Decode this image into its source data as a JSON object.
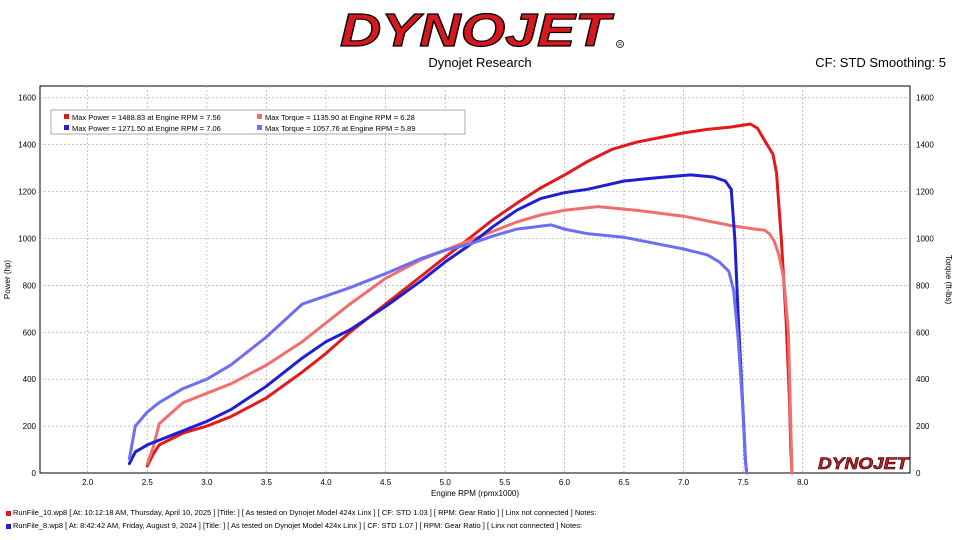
{
  "header": {
    "logo_text": "DYNOJET",
    "subtitle": "Dynojet Research",
    "cf_smoothing": "CF: STD Smoothing: 5",
    "watermark": "DYNOJET"
  },
  "legend": [
    {
      "text": "Max Power = 1488.83 at Engine RPM = 7.56",
      "color": "#e31a1c"
    },
    {
      "text": "Max Torque = 1135.90 at Engine RPM = 6.28",
      "color": "#ef6e6e"
    },
    {
      "text": "Max Power = 1271.50 at Engine RPM = 7.06",
      "color": "#1f1fd1"
    },
    {
      "text": "Max Torque = 1057.76 at Engine RPM = 5.89",
      "color": "#6e6ef0"
    }
  ],
  "footer": [
    {
      "text": "RunFile_10.wp8 [ At: 10:12:18 AM, Thursday, April 10, 2025 ] [Title: ]  [ As tested on Dynojet Model 424x Linx ] [ CF: STD 1.03 ] [ RPM: Gear Ratio ] [ Linx not connected ] Notes:",
      "color": "#e31a1c"
    },
    {
      "text": "RunFile_8.wp8 [ At: 8:42:42 AM, Friday, August 9, 2024 ] [Title: ]  [ As tested on Dynojet Model 424x Linx ] [ CF: STD 1.07 ] [ RPM: Gear Ratio ] [ Linx not connected ] Notes:",
      "color": "#1f1fd1"
    }
  ],
  "chart_data": {
    "type": "line",
    "xlabel": "Engine RPM (rpmx1000)",
    "ylabel": "Power (hp)",
    "y2label": "Torque (ft-lbs)",
    "xlim": [
      1.6,
      8.9
    ],
    "ylim": [
      0,
      1650
    ],
    "xticks": [
      "2.0",
      "2.5",
      "3.0",
      "3.5",
      "4.0",
      "4.5",
      "5.0",
      "5.5",
      "6.0",
      "6.5",
      "7.0",
      "7.5",
      "8.0"
    ],
    "yticks": [
      "0",
      "200",
      "400",
      "600",
      "800",
      "1000",
      "1200",
      "1400",
      "1600"
    ],
    "grid": true,
    "legend_position": "top-left",
    "series": [
      {
        "color": "#e31a1c",
        "x": [
          2.5,
          2.55,
          2.6,
          2.8,
          3.0,
          3.2,
          3.5,
          3.8,
          4.0,
          4.2,
          4.5,
          4.8,
          5.0,
          5.2,
          5.4,
          5.6,
          5.8,
          6.0,
          6.2,
          6.4,
          6.6,
          6.8,
          7.0,
          7.2,
          7.4,
          7.56,
          7.62,
          7.7,
          7.75,
          7.78,
          7.82,
          7.86,
          7.89,
          7.9,
          7.91
        ],
        "y": [
          30,
          80,
          120,
          170,
          200,
          240,
          320,
          430,
          510,
          600,
          720,
          840,
          920,
          1000,
          1080,
          1150,
          1215,
          1270,
          1330,
          1380,
          1410,
          1430,
          1450,
          1465,
          1475,
          1488,
          1470,
          1400,
          1360,
          1280,
          1000,
          650,
          300,
          100,
          0
        ]
      },
      {
        "color": "#ef6e6e",
        "x": [
          2.5,
          2.55,
          2.6,
          2.8,
          3.0,
          3.2,
          3.5,
          3.8,
          4.0,
          4.2,
          4.5,
          4.8,
          5.0,
          5.2,
          5.4,
          5.6,
          5.8,
          6.0,
          6.28,
          6.6,
          7.0,
          7.2,
          7.4,
          7.6,
          7.68,
          7.72,
          7.76,
          7.8,
          7.84,
          7.88,
          7.9,
          7.91
        ],
        "y": [
          40,
          110,
          210,
          300,
          340,
          380,
          460,
          560,
          640,
          720,
          830,
          910,
          950,
          990,
          1030,
          1070,
          1100,
          1120,
          1136,
          1120,
          1095,
          1075,
          1055,
          1040,
          1035,
          1020,
          990,
          930,
          830,
          600,
          200,
          0
        ]
      },
      {
        "color": "#1f1fd1",
        "x": [
          2.35,
          2.4,
          2.5,
          2.6,
          2.8,
          3.0,
          3.2,
          3.5,
          3.8,
          4.0,
          4.2,
          4.5,
          4.8,
          5.0,
          5.2,
          5.4,
          5.6,
          5.8,
          6.0,
          6.2,
          6.5,
          6.8,
          7.06,
          7.25,
          7.35,
          7.4,
          7.43,
          7.46,
          7.5,
          7.52,
          7.53
        ],
        "y": [
          40,
          90,
          120,
          140,
          180,
          220,
          270,
          370,
          490,
          560,
          610,
          710,
          820,
          900,
          970,
          1050,
          1120,
          1170,
          1195,
          1210,
          1245,
          1260,
          1271,
          1262,
          1245,
          1210,
          1000,
          650,
          250,
          50,
          0
        ]
      },
      {
        "color": "#6e6ef0",
        "x": [
          2.35,
          2.4,
          2.5,
          2.6,
          2.8,
          3.0,
          3.2,
          3.5,
          3.8,
          4.0,
          4.2,
          4.5,
          4.8,
          5.0,
          5.2,
          5.4,
          5.6,
          5.89,
          6.0,
          6.2,
          6.5,
          6.8,
          7.0,
          7.2,
          7.3,
          7.38,
          7.42,
          7.46,
          7.5,
          7.52,
          7.53
        ],
        "y": [
          60,
          200,
          260,
          300,
          360,
          400,
          460,
          580,
          720,
          755,
          790,
          850,
          915,
          950,
          975,
          1010,
          1040,
          1058,
          1040,
          1020,
          1005,
          975,
          955,
          930,
          900,
          860,
          780,
          560,
          250,
          50,
          0
        ]
      }
    ]
  }
}
